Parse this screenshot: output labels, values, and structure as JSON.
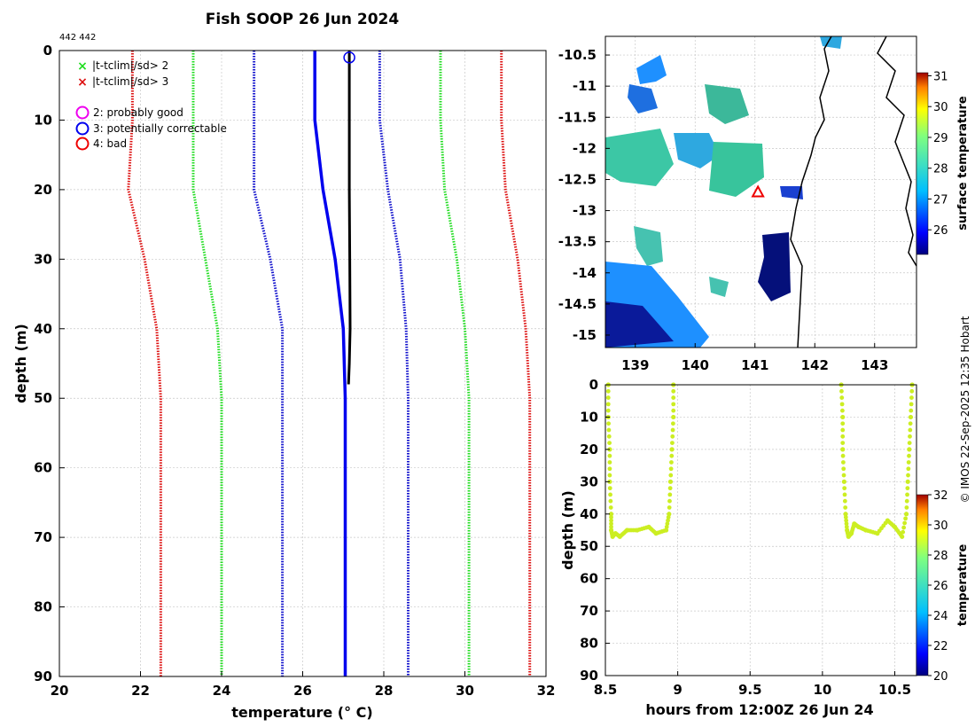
{
  "figure": {
    "title": "Fish SOOP 26 Jun 2024",
    "id_label": "442 442",
    "credit": "© IMOS 22-Sep-2025 12:35 Hobart"
  },
  "chart_data": [
    {
      "type": "line",
      "name": "profile",
      "xlabel": "temperature (° C)",
      "ylabel": "depth (m)",
      "xlim": [
        20,
        32
      ],
      "ylim": [
        90,
        0
      ],
      "xticks": [
        20,
        22,
        24,
        26,
        28,
        30,
        32
      ],
      "yticks": [
        0,
        10,
        20,
        30,
        40,
        50,
        60,
        70,
        80,
        90
      ],
      "grid": true,
      "legend": {
        "flags": [
          {
            "symbol": "×",
            "color": "#22dd22",
            "label": "|t-tclim|/sd> 2"
          },
          {
            "symbol": "×",
            "color": "#dd1111",
            "label": "|t-tclim|/sd> 3"
          }
        ],
        "qc": [
          {
            "color": "#ee00ee",
            "label": "2: probably good"
          },
          {
            "color": "#0000ee",
            "label": "3: potentially correctable"
          },
          {
            "color": "#ee0000",
            "label": "4: bad"
          }
        ]
      },
      "series": [
        {
          "name": "clim -3sd",
          "color": "#dd1111",
          "style": "dotted",
          "points": [
            [
              21.8,
              0
            ],
            [
              21.8,
              10
            ],
            [
              21.7,
              20
            ],
            [
              22.1,
              30
            ],
            [
              22.4,
              40
            ],
            [
              22.5,
              50
            ],
            [
              22.5,
              90
            ]
          ]
        },
        {
          "name": "clim -2sd",
          "color": "#22dd22",
          "style": "dotted",
          "points": [
            [
              23.3,
              0
            ],
            [
              23.3,
              10
            ],
            [
              23.3,
              20
            ],
            [
              23.6,
              30
            ],
            [
              23.9,
              40
            ],
            [
              24.0,
              50
            ],
            [
              24.0,
              90
            ]
          ]
        },
        {
          "name": "clim -1sd",
          "color": "#1010cc",
          "style": "dotted",
          "points": [
            [
              24.8,
              0
            ],
            [
              24.8,
              10
            ],
            [
              24.8,
              20
            ],
            [
              25.2,
              30
            ],
            [
              25.5,
              40
            ],
            [
              25.5,
              50
            ],
            [
              25.5,
              90
            ]
          ]
        },
        {
          "name": "climatology mean",
          "color": "#0000ee",
          "style": "solid",
          "points": [
            [
              26.3,
              0
            ],
            [
              26.3,
              10
            ],
            [
              26.5,
              20
            ],
            [
              26.8,
              30
            ],
            [
              27.0,
              40
            ],
            [
              27.05,
              50
            ],
            [
              27.05,
              90
            ]
          ]
        },
        {
          "name": "clim +1sd",
          "color": "#1010cc",
          "style": "dotted",
          "points": [
            [
              27.9,
              0
            ],
            [
              27.9,
              10
            ],
            [
              28.1,
              20
            ],
            [
              28.4,
              30
            ],
            [
              28.55,
              40
            ],
            [
              28.6,
              50
            ],
            [
              28.6,
              90
            ]
          ]
        },
        {
          "name": "clim +2sd",
          "color": "#22dd22",
          "style": "dotted",
          "points": [
            [
              29.4,
              0
            ],
            [
              29.4,
              10
            ],
            [
              29.5,
              20
            ],
            [
              29.8,
              30
            ],
            [
              30.0,
              40
            ],
            [
              30.1,
              50
            ],
            [
              30.1,
              90
            ]
          ]
        },
        {
          "name": "clim +3sd",
          "color": "#dd1111",
          "style": "dotted",
          "points": [
            [
              30.9,
              0
            ],
            [
              30.9,
              10
            ],
            [
              31.0,
              20
            ],
            [
              31.3,
              30
            ],
            [
              31.5,
              40
            ],
            [
              31.6,
              50
            ],
            [
              31.6,
              90
            ]
          ]
        },
        {
          "name": "observed",
          "color": "#000000",
          "style": "solid",
          "points": [
            [
              27.15,
              0
            ],
            [
              27.15,
              10
            ],
            [
              27.15,
              20
            ],
            [
              27.16,
              30
            ],
            [
              27.17,
              40
            ],
            [
              27.15,
              45
            ],
            [
              27.13,
              48
            ]
          ]
        }
      ],
      "markers": [
        {
          "x": 27.15,
          "y": 1,
          "shape": "circle",
          "color": "#0000ee"
        }
      ]
    },
    {
      "type": "heatmap",
      "name": "map",
      "xlim": [
        138.5,
        143.7
      ],
      "ylim": [
        -15.2,
        -10.2
      ],
      "xticks": [
        139,
        140,
        141,
        142,
        143
      ],
      "yticks": [
        -10.5,
        -11,
        -11.5,
        -12,
        -12.5,
        -13,
        -13.5,
        -14,
        -14.5,
        -15
      ],
      "colorbar": {
        "label": "surface temperature",
        "range": [
          25.2,
          31.1
        ],
        "ticks": [
          26,
          27,
          28,
          29,
          30,
          31
        ]
      },
      "station": {
        "lon": 141.05,
        "lat": -12.7
      }
    },
    {
      "type": "scatter",
      "name": "time-depth",
      "xlabel": "hours from 12:00Z 26 Jun 24",
      "ylabel": "depth (m)",
      "xlim": [
        8.5,
        10.65
      ],
      "ylim": [
        90,
        0
      ],
      "xticks": [
        8.5,
        9,
        9.5,
        10,
        10.5
      ],
      "yticks": [
        0,
        10,
        20,
        30,
        40,
        50,
        60,
        70,
        80,
        90
      ],
      "colorbar": {
        "label": "temperature",
        "range": [
          20,
          32
        ],
        "ticks": [
          20,
          22,
          24,
          26,
          28,
          30,
          32
        ]
      },
      "point_color": "#ccee22",
      "points": [
        [
          8.52,
          0
        ],
        [
          8.52,
          10
        ],
        [
          8.53,
          20
        ],
        [
          8.53,
          30
        ],
        [
          8.54,
          40
        ],
        [
          8.54,
          45
        ],
        [
          8.55,
          47
        ],
        [
          8.57,
          46
        ],
        [
          8.6,
          47
        ],
        [
          8.65,
          45
        ],
        [
          8.72,
          45
        ],
        [
          8.8,
          44
        ],
        [
          8.85,
          46
        ],
        [
          8.92,
          45
        ],
        [
          8.94,
          40
        ],
        [
          8.95,
          30
        ],
        [
          8.96,
          20
        ],
        [
          8.97,
          10
        ],
        [
          8.97,
          0
        ],
        [
          10.13,
          0
        ],
        [
          10.14,
          10
        ],
        [
          10.14,
          20
        ],
        [
          10.15,
          30
        ],
        [
          10.16,
          40
        ],
        [
          10.17,
          45
        ],
        [
          10.18,
          47
        ],
        [
          10.2,
          46
        ],
        [
          10.22,
          43
        ],
        [
          10.25,
          44
        ],
        [
          10.3,
          45
        ],
        [
          10.38,
          46
        ],
        [
          10.45,
          42
        ],
        [
          10.5,
          44
        ],
        [
          10.55,
          47
        ],
        [
          10.58,
          40
        ],
        [
          10.59,
          30
        ],
        [
          10.6,
          20
        ],
        [
          10.61,
          10
        ],
        [
          10.62,
          0
        ]
      ]
    }
  ]
}
